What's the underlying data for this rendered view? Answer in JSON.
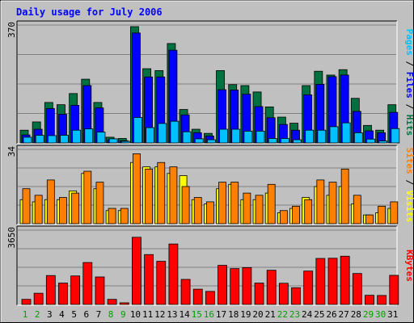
{
  "chart_data": {
    "type": "bar",
    "title": "Daily usage for July 2006",
    "days": [
      "1",
      "2",
      "3",
      "4",
      "5",
      "6",
      "7",
      "8",
      "9",
      "10",
      "11",
      "12",
      "13",
      "14",
      "15",
      "16",
      "17",
      "18",
      "19",
      "20",
      "21",
      "22",
      "23",
      "24",
      "25",
      "26",
      "27",
      "28",
      "29",
      "30",
      "31"
    ],
    "weekend_days": [
      "1",
      "2",
      "8",
      "9",
      "15",
      "16",
      "22",
      "23",
      "29",
      "30"
    ],
    "panels": [
      {
        "max_label": "370",
        "ylim": [
          0,
          370
        ],
        "series": [
          {
            "name": "Hits",
            "color": "#007040",
            "values": [
              40,
              66,
              127,
              120,
              155,
              200,
              127,
              18,
              14,
              365,
              233,
              227,
              312,
              105,
              43,
              30,
              227,
              183,
              180,
              160,
              113,
              81,
              62,
              180,
              225,
              213,
              230,
              140,
              55,
              40,
              120
            ]
          },
          {
            "name": "Files",
            "color": "#0000ff",
            "values": [
              25,
              43,
              108,
              90,
              118,
              180,
              110,
              10,
              7,
              345,
              207,
              207,
              291,
              88,
              32,
              22,
              167,
              166,
              153,
              114,
              79,
              58,
              40,
              151,
              184,
              208,
              213,
              99,
              38,
              32,
              96
            ]
          },
          {
            "name": "Pages",
            "color": "#00c0ff",
            "values": [
              18,
              24,
              23,
              24,
              40,
              44,
              34,
              13,
              5,
              80,
              48,
              61,
              68,
              35,
              13,
              10,
              43,
              43,
              37,
              37,
              14,
              14,
              10,
              40,
              40,
              51,
              63,
              32,
              12,
              6,
              45
            ]
          }
        ]
      },
      {
        "max_label": "34",
        "ylim": [
          0,
          34
        ],
        "series": [
          {
            "name": "Visits",
            "color": "#ffff00",
            "values": [
              11,
              10,
              11,
              11,
              15,
              23,
              16,
              6,
              6,
              28,
              26,
              26,
              23,
              22,
              11,
              9,
              16,
              18,
              11,
              11,
              14,
              5,
              7,
              12,
              17,
              13,
              17,
              9,
              4,
              5,
              7
            ]
          },
          {
            "name": "Sites",
            "color": "#ff8000",
            "values": [
              16,
              13,
              20,
              12,
              14,
              24,
              19,
              7,
              7,
              32,
              25,
              28,
              26,
              17,
              12,
              10,
              19,
              19,
              14,
              13,
              18,
              6,
              8,
              11,
              20,
              19,
              25,
              13,
              4,
              8,
              10
            ]
          }
        ]
      },
      {
        "max_label": "3650",
        "ylim": [
          0,
          3650
        ],
        "series": [
          {
            "name": "KBytes",
            "color": "#ff0000",
            "values": [
              250,
              550,
              1420,
              1050,
              1400,
              2060,
              1350,
              250,
              80,
              3300,
              2450,
              2120,
              2970,
              1230,
              750,
              640,
              1920,
              1760,
              1810,
              1050,
              1680,
              1040,
              820,
              1640,
              2260,
              2270,
              2370,
              1520,
              450,
              440,
              1430
            ]
          }
        ]
      }
    ]
  }
}
